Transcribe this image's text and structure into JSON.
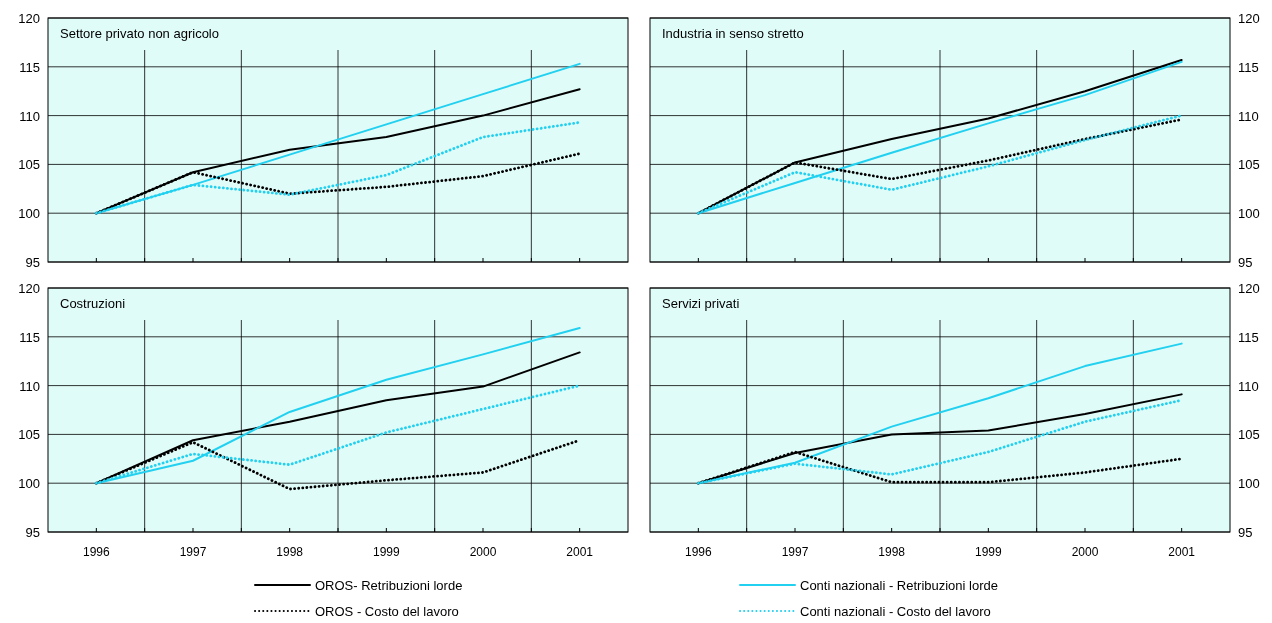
{
  "chart_data": [
    {
      "type": "line",
      "title": "Settore privato non agricolo",
      "x": [
        1996,
        1997,
        1998,
        1999,
        2000,
        2001
      ],
      "xlim": [
        1995.5,
        2001.5
      ],
      "xticks": [
        1996,
        {
          "value": 1996.5,
          "label": null
        },
        1997,
        {
          "value": 1997.5,
          "label": null
        },
        1998,
        {
          "value": 1998.5,
          "label": null
        },
        1999,
        {
          "value": 1999.5,
          "label": null
        },
        2000,
        {
          "value": 2000.5,
          "label": null
        },
        2001
      ],
      "ylim": [
        95,
        120
      ],
      "yticks": [
        95,
        100,
        105,
        110,
        115,
        120
      ],
      "grid": true,
      "tick_labels": "y",
      "legend": "bottom",
      "series": [
        {
          "name": "OROS- Retribuzioni lorde",
          "color": "#000000",
          "line_style": "solid",
          "values": [
            100,
            104.2,
            106.5,
            107.8,
            110.0,
            112.7
          ]
        },
        {
          "name": "Conti nazionali - Retribuzioni lorde",
          "color": "#22d0f0",
          "line_style": "solid",
          "values": [
            100,
            102.9,
            106.0,
            109.1,
            112.2,
            115.3
          ]
        },
        {
          "name": "OROS - Costo del lavoro",
          "color": "#000000",
          "line_style": "dotted",
          "values": [
            100,
            104.2,
            102.0,
            102.7,
            103.8,
            106.1
          ]
        },
        {
          "name": "Conti nazionali - Costo del lavoro",
          "color": "#22d0f0",
          "line_style": "dotted",
          "values": [
            100,
            102.9,
            101.9,
            103.9,
            107.8,
            109.3
          ]
        }
      ]
    },
    {
      "type": "line",
      "title": "Industria in senso stretto",
      "x": [
        1996,
        1997,
        1998,
        1999,
        2000,
        2001
      ],
      "xlim": [
        1995.5,
        2001.5
      ],
      "xticks": [
        1996,
        {
          "value": 1996.5,
          "label": null
        },
        1997,
        {
          "value": 1997.5,
          "label": null
        },
        1998,
        {
          "value": 1998.5,
          "label": null
        },
        1999,
        {
          "value": 1999.5,
          "label": null
        },
        2000,
        {
          "value": 2000.5,
          "label": null
        },
        2001
      ],
      "ylim": [
        95,
        120
      ],
      "yticks": [
        95,
        100,
        105,
        110,
        115,
        120
      ],
      "grid": true,
      "tick_labels": "y",
      "series": [
        {
          "color": "#000000",
          "line_style": "solid",
          "values": [
            100,
            105.2,
            107.6,
            109.7,
            112.5,
            115.7
          ]
        },
        {
          "color": "#22d0f0",
          "line_style": "solid",
          "values": [
            100,
            103.1,
            106.2,
            109.2,
            112.1,
            115.5
          ]
        },
        {
          "color": "#000000",
          "line_style": "dotted",
          "values": [
            100,
            105.2,
            103.5,
            105.4,
            107.6,
            109.6
          ]
        },
        {
          "color": "#22d0f0",
          "line_style": "dotted",
          "values": [
            100,
            104.2,
            102.4,
            104.8,
            107.5,
            110.0
          ]
        }
      ]
    },
    {
      "type": "line",
      "title": "Costruzioni",
      "x": [
        1996,
        1997,
        1998,
        1999,
        2000,
        2001
      ],
      "xlim": [
        1995.5,
        2001.5
      ],
      "xticks": [
        1996,
        {
          "value": 1996.5,
          "label": null
        },
        1997,
        {
          "value": 1997.5,
          "label": null
        },
        1998,
        {
          "value": 1998.5,
          "label": null
        },
        1999,
        {
          "value": 1999.5,
          "label": null
        },
        2000,
        {
          "value": 2000.5,
          "label": null
        },
        2001
      ],
      "ylim": [
        95,
        120
      ],
      "yticks": [
        95,
        100,
        105,
        110,
        115,
        120
      ],
      "grid": true,
      "series": [
        {
          "color": "#000000",
          "line_style": "solid",
          "values": [
            100,
            104.4,
            106.3,
            108.5,
            109.9,
            113.4
          ]
        },
        {
          "color": "#22d0f0",
          "line_style": "solid",
          "values": [
            100,
            102.3,
            107.3,
            110.6,
            113.2,
            115.9
          ]
        },
        {
          "color": "#000000",
          "line_style": "dotted",
          "values": [
            100,
            104.2,
            99.4,
            100.3,
            101.1,
            104.4
          ]
        },
        {
          "color": "#22d0f0",
          "line_style": "dotted",
          "values": [
            100,
            103.0,
            101.9,
            105.2,
            107.6,
            110.0
          ]
        }
      ]
    },
    {
      "type": "line",
      "title": "Servizi privati",
      "x": [
        1996,
        1997,
        1998,
        1999,
        2000,
        2001
      ],
      "xlim": [
        1995.5,
        2001.5
      ],
      "xticks": [
        1996,
        {
          "value": 1996.5,
          "label": null
        },
        1997,
        {
          "value": 1997.5,
          "label": null
        },
        1998,
        {
          "value": 1998.5,
          "label": null
        },
        1999,
        {
          "value": 1999.5,
          "label": null
        },
        2000,
        {
          "value": 2000.5,
          "label": null
        },
        2001
      ],
      "ylim": [
        95,
        120
      ],
      "yticks": [
        95,
        100,
        105,
        110,
        115,
        120
      ],
      "grid": true,
      "series": [
        {
          "color": "#000000",
          "line_style": "solid",
          "values": [
            100,
            103.1,
            105.0,
            105.4,
            107.1,
            109.1
          ]
        },
        {
          "color": "#22d0f0",
          "line_style": "solid",
          "values": [
            100,
            102.1,
            105.8,
            108.7,
            112.0,
            114.3
          ]
        },
        {
          "color": "#000000",
          "line_style": "dotted",
          "values": [
            100,
            103.2,
            100.1,
            100.1,
            101.1,
            102.5
          ]
        },
        {
          "color": "#22d0f0",
          "line_style": "dotted",
          "values": [
            100,
            102.0,
            100.9,
            103.2,
            106.3,
            108.5
          ]
        }
      ]
    }
  ]
}
